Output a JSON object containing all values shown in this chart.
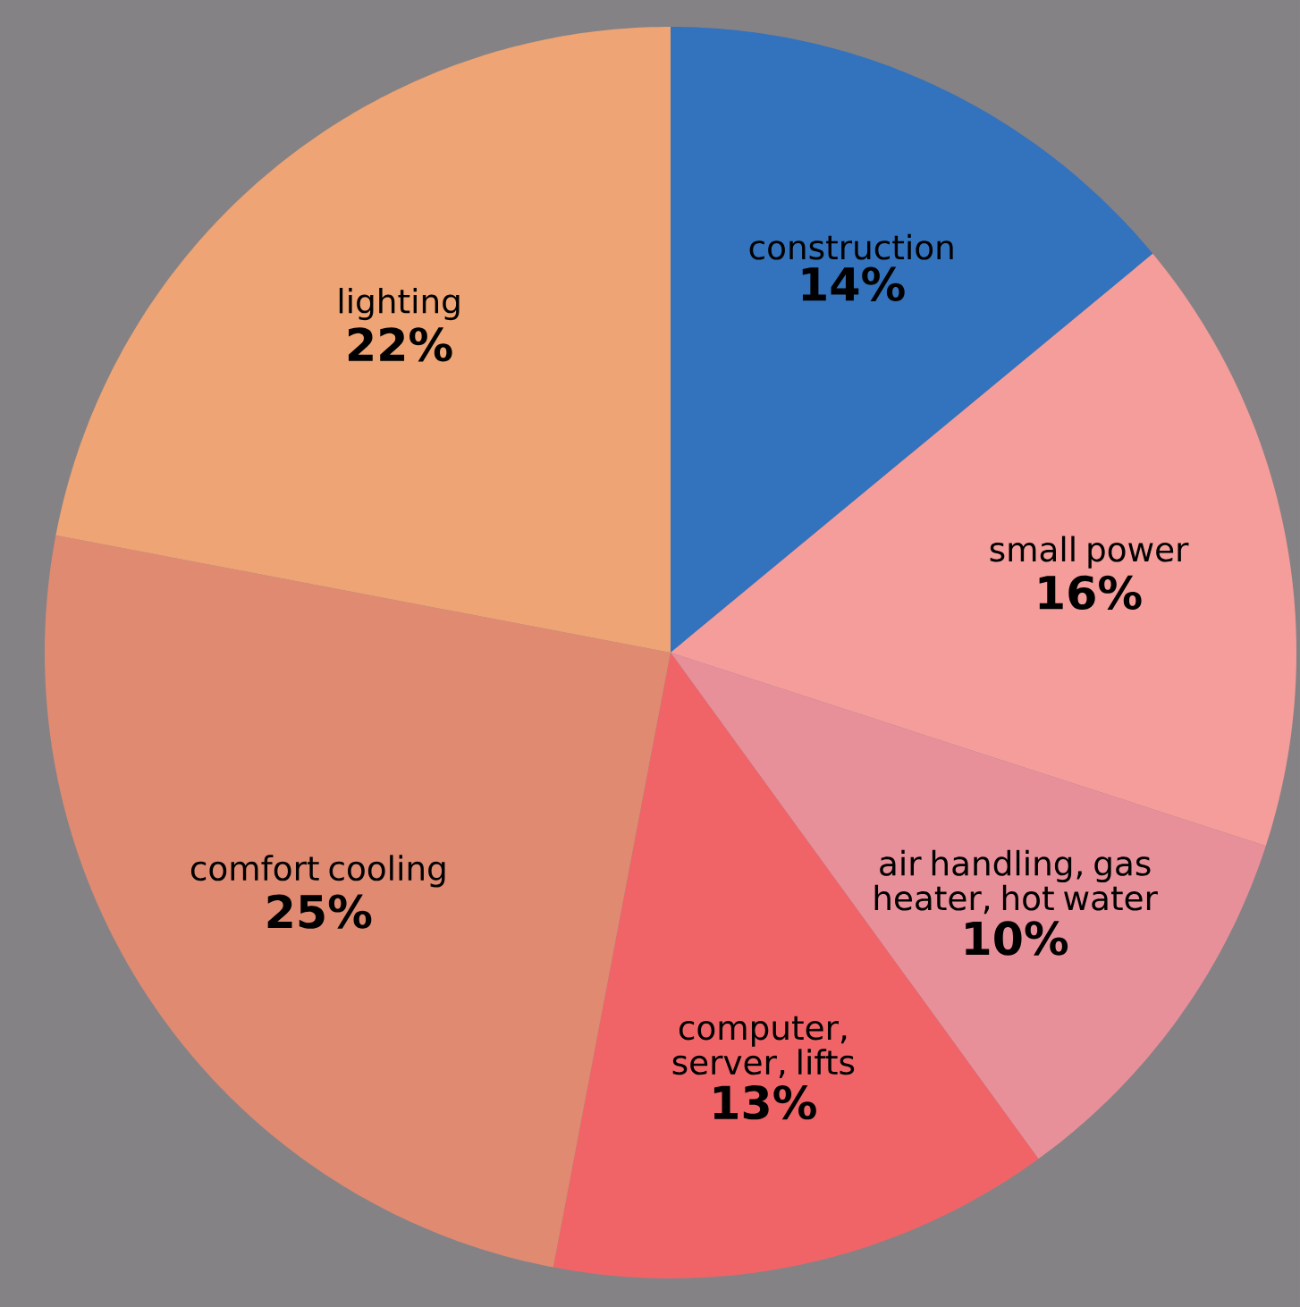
{
  "chart_data": {
    "type": "pie",
    "categories": [
      "construction",
      "small power",
      "air handling, gas heater, hot water",
      "computer, server, lifts",
      "comfort cooling",
      "lighting"
    ],
    "values": [
      14,
      16,
      10,
      13,
      25,
      22
    ],
    "value_labels": [
      "14%",
      "16%",
      "10%",
      "13%",
      "25%",
      "22%"
    ],
    "colors": [
      "#3372bd",
      "#f59d9a",
      "#e8909a",
      "#f06468",
      "#e08a72",
      "#eea474"
    ]
  }
}
